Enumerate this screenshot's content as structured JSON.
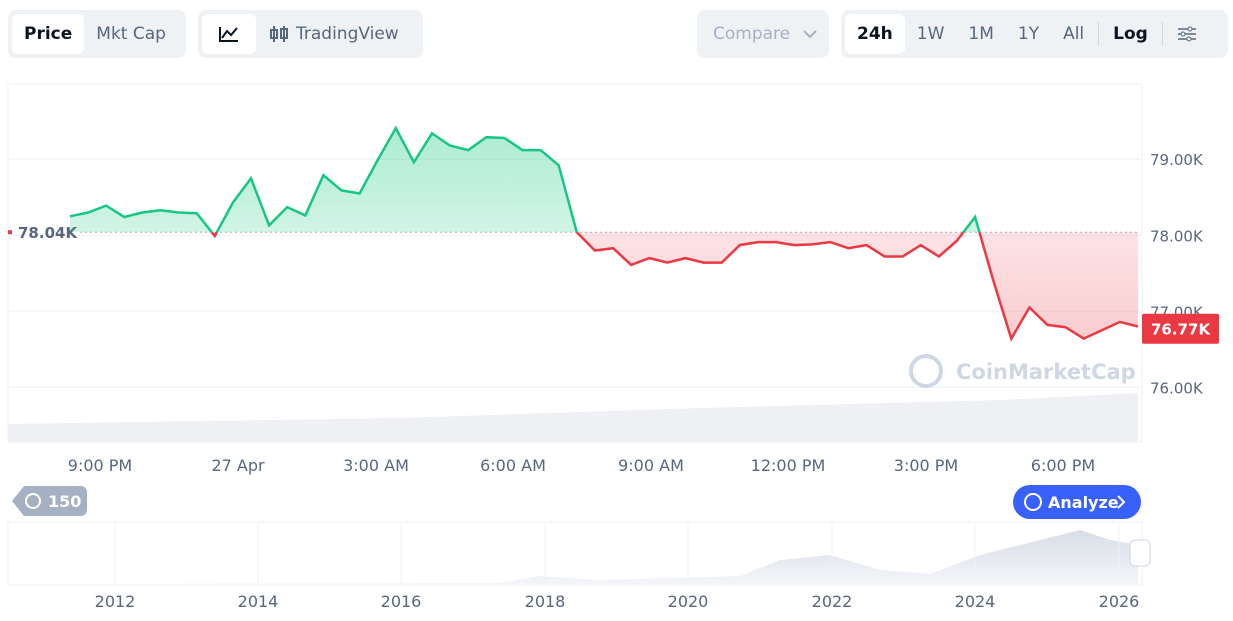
{
  "toolbar": {
    "modes": [
      "Price",
      "Mkt Cap"
    ],
    "tradingview": "TradingView",
    "compare": "Compare",
    "ranges": [
      "24h",
      "1W",
      "1M",
      "1Y",
      "All"
    ],
    "log": "Log"
  },
  "chart_data": {
    "type": "line",
    "values": [
      78.25,
      78.3,
      78.39,
      78.24,
      78.3,
      78.33,
      78.3,
      78.29,
      77.99,
      78.43,
      78.75,
      78.13,
      78.37,
      78.26,
      78.79,
      78.59,
      78.55,
      78.99,
      79.41,
      78.96,
      79.34,
      79.18,
      79.12,
      79.29,
      79.28,
      79.12,
      79.12,
      78.92,
      78.04,
      77.8,
      77.83,
      77.61,
      77.7,
      77.64,
      77.7,
      77.64,
      77.64,
      77.87,
      77.91,
      77.91,
      77.87,
      77.88,
      77.91,
      77.83,
      77.87,
      77.72,
      77.72,
      77.87,
      77.72,
      77.93,
      78.24,
      77.41,
      76.64,
      77.05,
      76.82,
      76.79,
      76.64,
      76.75,
      76.86,
      76.8
    ],
    "up_color": "#16c784",
    "down_color": "#ea3943",
    "baseline": {
      "value": 78.04,
      "label": "78.04K"
    },
    "last_price": {
      "value": 76.77,
      "label": "76.77K"
    },
    "ylim": [
      75.28,
      79.99
    ],
    "yticks": [
      {
        "value": 76,
        "label": "76.00K"
      },
      {
        "value": 77,
        "label": "77.00K"
      },
      {
        "value": 78,
        "label": "78.00K"
      },
      {
        "value": 79,
        "label": "79.00K"
      }
    ],
    "x_labels": [
      "9:00 PM",
      "27 Apr",
      "3:00 AM",
      "6:00 AM",
      "9:00 AM",
      "12:00 PM",
      "3:00 PM",
      "6:00 PM"
    ],
    "grid": true
  },
  "watermark": "CoinMarketCap",
  "history_badge": "150",
  "analyze": "Analyze",
  "navigator": {
    "years": [
      2012,
      2014,
      2016,
      2018,
      2020,
      2022,
      2024,
      2026
    ]
  }
}
